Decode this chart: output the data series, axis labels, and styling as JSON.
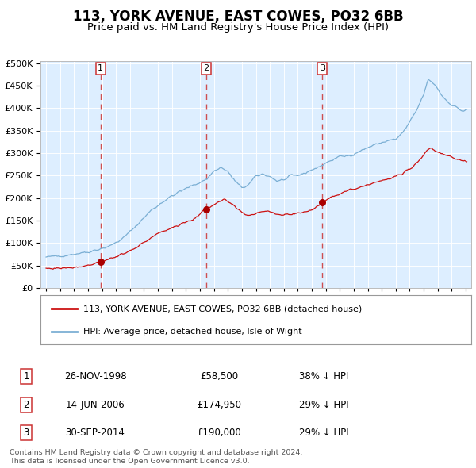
{
  "title": "113, YORK AVENUE, EAST COWES, PO32 6BB",
  "subtitle": "Price paid vs. HM Land Registry's House Price Index (HPI)",
  "legend_line1": "113, YORK AVENUE, EAST COWES, PO32 6BB (detached house)",
  "legend_line2": "HPI: Average price, detached house, Isle of Wight",
  "footer1": "Contains HM Land Registry data © Crown copyright and database right 2024.",
  "footer2": "This data is licensed under the Open Government Licence v3.0.",
  "sale_years": [
    1998.899,
    2006.452,
    2014.747
  ],
  "sale_prices": [
    58500,
    174950,
    190000
  ],
  "sale_labels": [
    "1",
    "2",
    "3"
  ],
  "row_data": [
    [
      "1",
      "26-NOV-1998",
      "£58,500",
      "38% ↓ HPI"
    ],
    [
      "2",
      "14-JUN-2006",
      "£174,950",
      "29% ↓ HPI"
    ],
    [
      "3",
      "30-SEP-2014",
      "£190,000",
      "29% ↓ HPI"
    ]
  ],
  "hpi_color": "#7bafd4",
  "price_color": "#cc1111",
  "marker_color": "#aa0000",
  "dashed_line_color": "#cc3333",
  "plot_bg_color": "#ddeeff",
  "ylim": [
    0,
    500000
  ],
  "yticks": [
    0,
    50000,
    100000,
    150000,
    200000,
    250000,
    300000,
    350000,
    400000,
    450000,
    500000
  ],
  "xlim_start": 1994.6,
  "xlim_end": 2025.4,
  "title_fontsize": 12,
  "subtitle_fontsize": 9.5,
  "tick_fontsize": 7.5,
  "ytick_fontsize": 8
}
